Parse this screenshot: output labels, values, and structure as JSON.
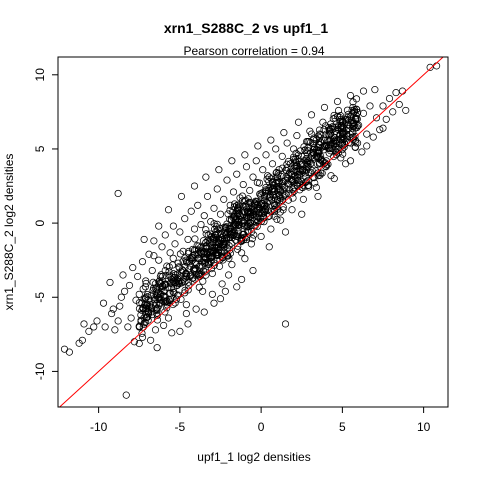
{
  "chart_data": {
    "type": "scatter",
    "title": "xrn1_S288C_2 vs upf1_1",
    "subtitle": "Pearson correlation =  0.94",
    "xlabel": "upf1_1 log2 densities",
    "ylabel": "xrn1_S288C_2 log2 densities",
    "xlim": [
      -12.5,
      11.5
    ],
    "ylim": [
      -12.4,
      11.2
    ],
    "x_ticks": [
      -10,
      -5,
      0,
      5,
      10
    ],
    "y_ticks": [
      -10,
      -5,
      0,
      5,
      10
    ],
    "pearson_r": 0.94,
    "reference_line": {
      "slope": 1,
      "intercept": 0,
      "color": "#ff0000"
    },
    "point_color": "#000000",
    "series": [
      {
        "points": [
          [
            -12.1,
            -8.5
          ],
          [
            -11.8,
            -8.7
          ],
          [
            -11.2,
            -8.1
          ],
          [
            -11.0,
            -7.9
          ],
          [
            -10.9,
            -6.8
          ],
          [
            -10.6,
            -7.3
          ],
          [
            -10.3,
            -7.0
          ],
          [
            -10.1,
            -6.6
          ],
          [
            -9.6,
            -7.0
          ],
          [
            -9.3,
            -4.0
          ],
          [
            -9.1,
            -5.8
          ],
          [
            -9.0,
            -7.2
          ],
          [
            -8.8,
            -6.6
          ],
          [
            -8.7,
            -5.6
          ],
          [
            -8.6,
            -5.0
          ],
          [
            -8.4,
            -4.6
          ],
          [
            -8.3,
            -11.6
          ],
          [
            -8.5,
            -3.5
          ],
          [
            -8.1,
            -4.2
          ],
          [
            -8.0,
            -6.4
          ],
          [
            -7.9,
            -3.0
          ],
          [
            -7.8,
            -8.0
          ],
          [
            -7.7,
            -5.2
          ],
          [
            -7.6,
            -3.6
          ],
          [
            -7.5,
            -4.8
          ],
          [
            -7.4,
            -6.2
          ],
          [
            -7.3,
            -2.6
          ],
          [
            -7.1,
            -3.9
          ],
          [
            -7.0,
            -5.5
          ],
          [
            -6.9,
            -2.1
          ],
          [
            -6.8,
            -7.9
          ],
          [
            -6.7,
            -3.2
          ],
          [
            -6.6,
            -1.2
          ],
          [
            -6.5,
            -4.4
          ],
          [
            -6.4,
            -5.9
          ],
          [
            -6.3,
            -2.5
          ],
          [
            -6.2,
            -3.6
          ],
          [
            -6.1,
            -1.6
          ],
          [
            -6.0,
            -4.9
          ],
          [
            -5.9,
            -0.8
          ],
          [
            -5.8,
            -2.9
          ],
          [
            -5.7,
            -6.4
          ],
          [
            -5.6,
            -2.0
          ],
          [
            -5.5,
            -3.8
          ],
          [
            -5.4,
            -0.2
          ],
          [
            -5.3,
            -1.4
          ],
          [
            -5.2,
            -4.2
          ],
          [
            -5.1,
            -2.7
          ],
          [
            -5.0,
            -0.6
          ],
          [
            -4.9,
            -3.3
          ],
          [
            -4.8,
            -1.9
          ],
          [
            -4.7,
            0.3
          ],
          [
            -4.6,
            -5.5
          ],
          [
            -4.5,
            -1.1
          ],
          [
            -4.4,
            -2.6
          ],
          [
            -4.3,
            0.8
          ],
          [
            -4.2,
            -3.9
          ],
          [
            -4.1,
            -0.4
          ],
          [
            -4.0,
            -1.8
          ],
          [
            -3.9,
            1.2
          ],
          [
            -3.8,
            -2.9
          ],
          [
            -3.7,
            -0.1
          ],
          [
            -3.6,
            -4.6
          ],
          [
            -3.5,
            0.5
          ],
          [
            -3.4,
            -1.3
          ],
          [
            -3.3,
            1.8
          ],
          [
            -3.2,
            -2.2
          ],
          [
            -3.1,
            0.1
          ],
          [
            -3.0,
            -3.4
          ],
          [
            -2.9,
            1.0
          ],
          [
            -2.8,
            -0.8
          ],
          [
            -2.7,
            2.3
          ],
          [
            -2.6,
            -1.6
          ],
          [
            -2.5,
            0.6
          ],
          [
            -2.4,
            -4.1
          ],
          [
            -2.3,
            1.6
          ],
          [
            -2.2,
            -0.3
          ],
          [
            -2.1,
            2.9
          ],
          [
            -2.0,
            -1.0
          ],
          [
            -1.9,
            1.2
          ],
          [
            -1.8,
            -2.8
          ],
          [
            -1.7,
            2.1
          ],
          [
            -1.6,
            0.2
          ],
          [
            -1.5,
            3.3
          ],
          [
            -1.4,
            -0.6
          ],
          [
            -1.3,
            1.7
          ],
          [
            -1.2,
            -2.0
          ],
          [
            -1.1,
            2.6
          ],
          [
            -1.0,
            0.8
          ],
          [
            -0.9,
            3.8
          ],
          [
            -0.8,
            -0.2
          ],
          [
            -0.7,
            2.2
          ],
          [
            -0.6,
            -1.4
          ],
          [
            -0.5,
            3.1
          ],
          [
            -0.4,
            1.3
          ],
          [
            -0.3,
            4.2
          ],
          [
            -0.2,
            0.4
          ],
          [
            -0.1,
            2.7
          ],
          [
            0.0,
            -0.9
          ],
          [
            0.1,
            3.6
          ],
          [
            0.2,
            1.8
          ],
          [
            0.3,
            4.6
          ],
          [
            0.4,
            0.9
          ],
          [
            0.5,
            3.1
          ],
          [
            0.6,
            -0.4
          ],
          [
            0.7,
            4.0
          ],
          [
            0.8,
            2.3
          ],
          [
            0.9,
            5.0
          ],
          [
            1.0,
            1.5
          ],
          [
            1.1,
            3.6
          ],
          [
            1.2,
            0.2
          ],
          [
            1.3,
            4.5
          ],
          [
            1.5,
            -6.8
          ],
          [
            1.4,
            2.8
          ],
          [
            1.6,
            5.4
          ],
          [
            1.7,
            2.0
          ],
          [
            1.8,
            4.0
          ],
          [
            1.9,
            0.9
          ],
          [
            2.0,
            5.0
          ],
          [
            2.1,
            3.2
          ],
          [
            2.2,
            5.9
          ],
          [
            2.4,
            2.6
          ],
          [
            2.5,
            4.5
          ],
          [
            2.6,
            1.6
          ],
          [
            2.8,
            5.5
          ],
          [
            2.9,
            3.8
          ],
          [
            3.0,
            6.2
          ],
          [
            3.2,
            3.1
          ],
          [
            3.3,
            5.0
          ],
          [
            3.4,
            2.4
          ],
          [
            3.6,
            6.0
          ],
          [
            3.7,
            4.3
          ],
          [
            3.8,
            6.8
          ],
          [
            4.0,
            3.8
          ],
          [
            4.1,
            5.6
          ],
          [
            4.3,
            3.2
          ],
          [
            4.4,
            6.5
          ],
          [
            4.6,
            4.8
          ],
          [
            4.7,
            7.2
          ],
          [
            4.9,
            4.4
          ],
          [
            5.0,
            6.1
          ],
          [
            5.2,
            4.0
          ],
          [
            5.3,
            7.0
          ],
          [
            5.5,
            5.4
          ],
          [
            5.6,
            7.6
          ],
          [
            5.8,
            5.1
          ],
          [
            6.0,
            6.6
          ],
          [
            6.2,
            4.8
          ],
          [
            6.3,
            7.4
          ],
          [
            6.5,
            6.0
          ],
          [
            6.7,
            7.9
          ],
          [
            6.9,
            5.8
          ],
          [
            7.1,
            7.1
          ],
          [
            7.3,
            6.3
          ],
          [
            7.5,
            7.9
          ],
          [
            7.7,
            7.0
          ],
          [
            7.9,
            8.4
          ],
          [
            8.1,
            7.5
          ],
          [
            8.3,
            8.8
          ],
          [
            8.5,
            8.0
          ],
          [
            8.7,
            8.9
          ],
          [
            8.9,
            7.6
          ],
          [
            10.4,
            10.5
          ],
          [
            10.8,
            10.6
          ],
          [
            -0.5,
            -3.2
          ],
          [
            -1.5,
            -4.3
          ],
          [
            -2.5,
            -5.1
          ],
          [
            -3.5,
            -6.0
          ],
          [
            -4.5,
            -6.8
          ],
          [
            -5.5,
            -7.4
          ],
          [
            -6.5,
            -7.2
          ],
          [
            -7.5,
            -7.0
          ],
          [
            -6.0,
            -6.9
          ],
          [
            -4.0,
            -5.8
          ],
          [
            -3.0,
            -4.8
          ],
          [
            -2.0,
            -3.5
          ],
          [
            -1.0,
            -2.4
          ],
          [
            0.5,
            -1.6
          ],
          [
            1.5,
            -0.6
          ],
          [
            2.5,
            0.6
          ],
          [
            3.5,
            1.8
          ],
          [
            4.5,
            3.0
          ],
          [
            5.5,
            4.2
          ],
          [
            6.5,
            5.2
          ],
          [
            7.5,
            6.4
          ],
          [
            -8.8,
            2.0
          ],
          [
            -6.3,
            -0.2
          ],
          [
            -5.7,
            0.9
          ],
          [
            -4.9,
            1.8
          ],
          [
            -4.1,
            2.5
          ],
          [
            -3.4,
            3.1
          ],
          [
            -2.6,
            3.6
          ],
          [
            -1.8,
            4.2
          ],
          [
            -1.0,
            4.6
          ],
          [
            -0.2,
            5.2
          ],
          [
            0.6,
            5.6
          ],
          [
            1.4,
            6.1
          ],
          [
            2.3,
            6.8
          ],
          [
            3.1,
            7.3
          ],
          [
            3.9,
            7.8
          ],
          [
            4.7,
            8.2
          ],
          [
            5.5,
            8.6
          ],
          [
            6.3,
            8.9
          ],
          [
            7.0,
            9.0
          ],
          [
            -7.2,
            -1.1
          ],
          [
            -6.6,
            -2.2
          ],
          [
            -5.9,
            -3.2
          ],
          [
            -5.3,
            -4.0
          ],
          [
            -4.7,
            -4.7
          ],
          [
            -4.2,
            -3.7
          ],
          [
            -3.7,
            -2.9
          ],
          [
            -3.1,
            -2.0
          ],
          [
            -2.5,
            -1.2
          ],
          [
            -1.9,
            -0.4
          ],
          [
            -1.3,
            0.5
          ],
          [
            -0.7,
            1.4
          ],
          [
            0.0,
            2.0
          ],
          [
            0.7,
            2.8
          ],
          [
            1.3,
            3.7
          ],
          [
            2.0,
            4.3
          ],
          [
            2.7,
            4.9
          ],
          [
            3.4,
            5.6
          ],
          [
            4.2,
            6.3
          ],
          [
            5.0,
            6.9
          ],
          [
            5.7,
            6.5
          ],
          [
            -9.7,
            -5.4
          ],
          [
            -9.2,
            -6.1
          ],
          [
            -8.2,
            -7.0
          ],
          [
            -7.3,
            -7.7
          ],
          [
            -6.4,
            -8.4
          ],
          [
            -5.0,
            -7.3
          ],
          [
            -4.6,
            -6.1
          ],
          [
            -2.9,
            -5.4
          ],
          [
            -2.2,
            -4.6
          ],
          [
            -1.2,
            -3.8
          ]
        ]
      }
    ]
  }
}
